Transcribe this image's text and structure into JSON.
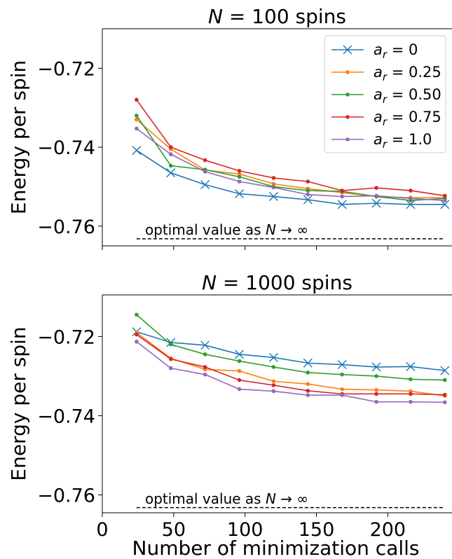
{
  "chart_data": [
    {
      "type": "line",
      "title": "N = 100 spins",
      "xlabel": "",
      "ylabel": "Energy per spin",
      "xlim": [
        0,
        245
      ],
      "ylim": [
        -0.765,
        -0.71
      ],
      "yticks": [
        "−0.72",
        "−0.74",
        "−0.76"
      ],
      "ytick_values": [
        -0.72,
        -0.74,
        -0.76
      ],
      "xtick_values": [
        0,
        50,
        100,
        150,
        200
      ],
      "show_x_tick_labels": false,
      "legend": "top-right",
      "x": [
        24,
        48,
        72,
        96,
        120,
        144,
        168,
        192,
        216,
        240
      ],
      "series": [
        {
          "name": "a_r = 0",
          "color": "#1f77b4",
          "marker": "x",
          "values": [
            -0.7408,
            -0.7465,
            -0.7495,
            -0.7518,
            -0.7525,
            -0.7533,
            -0.7545,
            -0.7542,
            -0.7545,
            -0.7545
          ]
        },
        {
          "name": "a_r = 0.25",
          "color": "#ff7f0e",
          "marker": "o",
          "values": [
            -0.733,
            -0.7405,
            -0.7458,
            -0.7468,
            -0.7493,
            -0.7505,
            -0.7515,
            -0.7525,
            -0.7528,
            -0.7528
          ]
        },
        {
          "name": "a_r = 0.50",
          "color": "#2ca02c",
          "marker": "o",
          "values": [
            -0.732,
            -0.7447,
            -0.7457,
            -0.7475,
            -0.75,
            -0.751,
            -0.7512,
            -0.7525,
            -0.7535,
            -0.753
          ]
        },
        {
          "name": "a_r = 0.75",
          "color": "#d62728",
          "marker": "o",
          "values": [
            -0.728,
            -0.74,
            -0.7433,
            -0.746,
            -0.7478,
            -0.7487,
            -0.751,
            -0.7503,
            -0.751,
            -0.7523
          ]
        },
        {
          "name": "a_r = 1.0",
          "color": "#9467bd",
          "marker": "o",
          "values": [
            -0.7353,
            -0.7418,
            -0.7462,
            -0.7487,
            -0.7502,
            -0.752,
            -0.7525,
            -0.7523,
            -0.753,
            -0.7535
          ]
        }
      ],
      "reference_line": {
        "y": -0.7632,
        "x_start": 24,
        "x_end": 240,
        "style": "dashed"
      },
      "annotation": {
        "prefix": "optimal value as ",
        "variable": "N",
        "suffix": " → ∞",
        "x": 26,
        "y": -0.7613
      }
    },
    {
      "type": "line",
      "title": "N = 1000 spins",
      "xlabel": "Number of minimization calls",
      "ylabel": "Energy per spin",
      "xlim": [
        0,
        245
      ],
      "ylim": [
        -0.7645,
        -0.7095
      ],
      "yticks": [
        "−0.72",
        "−0.74",
        "−0.76"
      ],
      "ytick_values": [
        -0.72,
        -0.74,
        -0.76
      ],
      "xticks": [
        "0",
        "50",
        "100",
        "150",
        "200"
      ],
      "xtick_values": [
        0,
        50,
        100,
        150,
        200
      ],
      "show_x_tick_labels": true,
      "x": [
        24,
        48,
        72,
        96,
        120,
        144,
        168,
        192,
        216,
        240
      ],
      "series": [
        {
          "name": "a_r = 0",
          "color": "#1f77b4",
          "marker": "x",
          "values": [
            -0.7188,
            -0.7215,
            -0.7222,
            -0.7245,
            -0.7253,
            -0.7267,
            -0.7271,
            -0.7277,
            -0.7276,
            -0.7286
          ]
        },
        {
          "name": "a_r = 0.25",
          "color": "#ff7f0e",
          "marker": "o",
          "values": [
            -0.719,
            -0.7255,
            -0.7283,
            -0.7287,
            -0.7313,
            -0.732,
            -0.7333,
            -0.7335,
            -0.7338,
            -0.735
          ]
        },
        {
          "name": "a_r = 0.50",
          "color": "#2ca02c",
          "marker": "o",
          "values": [
            -0.7145,
            -0.722,
            -0.7245,
            -0.7262,
            -0.7277,
            -0.7291,
            -0.7296,
            -0.73,
            -0.7308,
            -0.731
          ]
        },
        {
          "name": "a_r = 0.75",
          "color": "#d62728",
          "marker": "o",
          "values": [
            -0.7195,
            -0.7257,
            -0.7277,
            -0.731,
            -0.7323,
            -0.7337,
            -0.7345,
            -0.7345,
            -0.7345,
            -0.7347
          ]
        },
        {
          "name": "a_r = 1.0",
          "color": "#9467bd",
          "marker": "o",
          "values": [
            -0.7213,
            -0.728,
            -0.7296,
            -0.7333,
            -0.7338,
            -0.7348,
            -0.7348,
            -0.7365,
            -0.7365,
            -0.7366
          ]
        }
      ],
      "reference_line": {
        "y": -0.7632,
        "x_start": 24,
        "x_end": 240,
        "style": "dashed"
      },
      "annotation": {
        "prefix": "optimal value as ",
        "variable": "N",
        "suffix": " → ∞",
        "x": 26,
        "y": -0.7613
      }
    }
  ],
  "titles": [
    {
      "prefix": "",
      "variable": "N",
      "mid": " = 100 spins"
    },
    {
      "prefix": "",
      "variable": "N",
      "mid": " = 1000 spins"
    }
  ],
  "legend_entries": [
    {
      "sub": "r",
      "value": " = 0"
    },
    {
      "sub": "r",
      "value": " = 0.25"
    },
    {
      "sub": "r",
      "value": " = 0.50"
    },
    {
      "sub": "r",
      "value": " = 0.75"
    },
    {
      "sub": "r",
      "value": " = 1.0"
    }
  ]
}
